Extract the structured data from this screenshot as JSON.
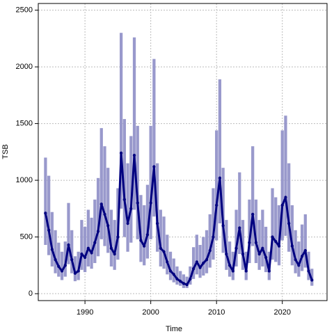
{
  "chart_data": {
    "type": "line",
    "x_label": "Time",
    "y_label": "TSB",
    "x": [
      1984.0,
      1984.5,
      1985.0,
      1985.5,
      1986.0,
      1986.5,
      1987.0,
      1987.5,
      1988.0,
      1988.5,
      1989.0,
      1989.5,
      1990.0,
      1990.5,
      1991.0,
      1991.5,
      1992.0,
      1992.5,
      1993.0,
      1993.5,
      1994.0,
      1994.5,
      1995.0,
      1995.5,
      1996.0,
      1996.5,
      1997.0,
      1997.5,
      1998.0,
      1998.5,
      1999.0,
      1999.5,
      2000.0,
      2000.5,
      2001.0,
      2001.5,
      2002.0,
      2002.5,
      2003.0,
      2003.5,
      2004.0,
      2004.5,
      2005.0,
      2005.5,
      2006.0,
      2006.5,
      2007.0,
      2007.5,
      2008.0,
      2008.5,
      2009.0,
      2009.5,
      2010.0,
      2010.5,
      2011.0,
      2011.5,
      2012.0,
      2012.5,
      2013.0,
      2013.5,
      2014.0,
      2014.5,
      2015.0,
      2015.5,
      2016.0,
      2016.5,
      2017.0,
      2017.5,
      2018.0,
      2018.5,
      2019.0,
      2019.5,
      2020.0,
      2020.5,
      2021.0,
      2021.5,
      2022.0,
      2022.5,
      2023.0,
      2023.5,
      2024.0,
      2024.5
    ],
    "values": [
      710,
      560,
      390,
      300,
      240,
      200,
      250,
      430,
      300,
      180,
      200,
      350,
      320,
      400,
      360,
      450,
      550,
      790,
      700,
      600,
      400,
      350,
      500,
      1240,
      830,
      620,
      750,
      1220,
      800,
      470,
      420,
      520,
      800,
      1120,
      620,
      400,
      370,
      280,
      200,
      170,
      130,
      110,
      90,
      80,
      130,
      220,
      280,
      230,
      270,
      300,
      380,
      500,
      780,
      1020,
      600,
      350,
      250,
      200,
      400,
      580,
      350,
      200,
      450,
      700,
      450,
      350,
      400,
      320,
      200,
      500,
      460,
      420,
      780,
      850,
      620,
      420,
      300,
      250,
      330,
      380,
      200,
      120
    ],
    "lower": [
      430,
      340,
      240,
      180,
      150,
      120,
      150,
      260,
      180,
      110,
      120,
      210,
      190,
      240,
      220,
      270,
      330,
      480,
      420,
      360,
      240,
      210,
      300,
      750,
      500,
      370,
      450,
      740,
      480,
      280,
      250,
      310,
      480,
      680,
      370,
      240,
      220,
      170,
      120,
      100,
      80,
      70,
      50,
      50,
      80,
      130,
      170,
      140,
      160,
      180,
      230,
      300,
      470,
      620,
      360,
      210,
      150,
      120,
      240,
      350,
      210,
      120,
      270,
      420,
      270,
      210,
      240,
      190,
      120,
      300,
      280,
      250,
      470,
      510,
      370,
      250,
      180,
      150,
      200,
      230,
      120,
      70
    ],
    "upper": [
      1200,
      1040,
      720,
      560,
      450,
      370,
      460,
      800,
      560,
      330,
      370,
      650,
      590,
      740,
      670,
      830,
      1020,
      1460,
      1300,
      1110,
      740,
      650,
      930,
      2300,
      1540,
      1150,
      1390,
      2260,
      1480,
      870,
      780,
      960,
      1480,
      2070,
      1150,
      740,
      680,
      520,
      370,
      310,
      240,
      200,
      170,
      150,
      240,
      410,
      520,
      430,
      500,
      560,
      700,
      930,
      1440,
      1890,
      1110,
      650,
      460,
      370,
      740,
      1070,
      650,
      370,
      830,
      1300,
      830,
      650,
      740,
      590,
      370,
      930,
      850,
      780,
      1440,
      1570,
      1150,
      780,
      560,
      460,
      610,
      700,
      370,
      220
    ],
    "color": "#000080",
    "band_color": "#9999cc",
    "xlim": [
      1982.9,
      2026.8
    ],
    "ylim": [
      -61,
      2559
    ],
    "xticks": [
      1990,
      2000,
      2010,
      2020
    ],
    "yticks": [
      0,
      500,
      1000,
      1500,
      2000,
      2500
    ],
    "grid": true
  }
}
